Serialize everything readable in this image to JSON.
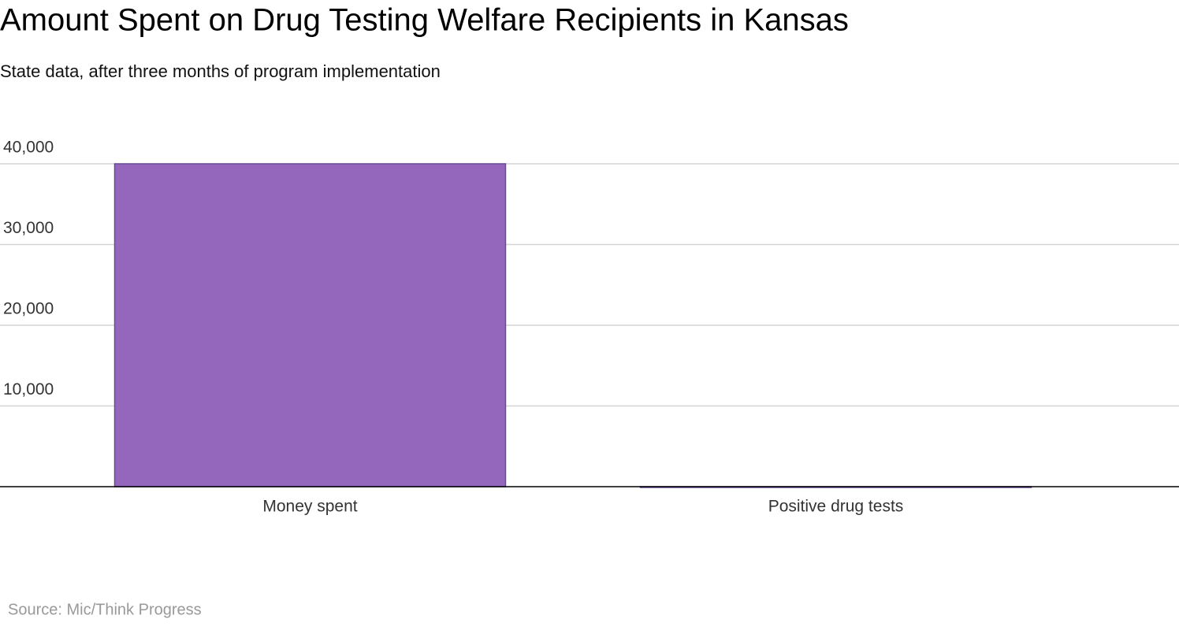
{
  "chart_data": {
    "type": "bar",
    "title": "Amount Spent on Drug Testing Welfare Recipients in Kansas",
    "subtitle": "State data, after three months of program implementation",
    "source": "Source: Mic/Think Progress",
    "categories": [
      "Money spent",
      "Positive drug tests"
    ],
    "values": [
      40000,
      0
    ],
    "color": "#9467bd",
    "ylim": [
      0,
      40000
    ],
    "yticks": [
      {
        "value": 10000,
        "label": "10,000"
      },
      {
        "value": 20000,
        "label": "20,000"
      },
      {
        "value": 30000,
        "label": "30,000"
      },
      {
        "value": 40000,
        "label": "40,000"
      }
    ],
    "grid": true
  }
}
